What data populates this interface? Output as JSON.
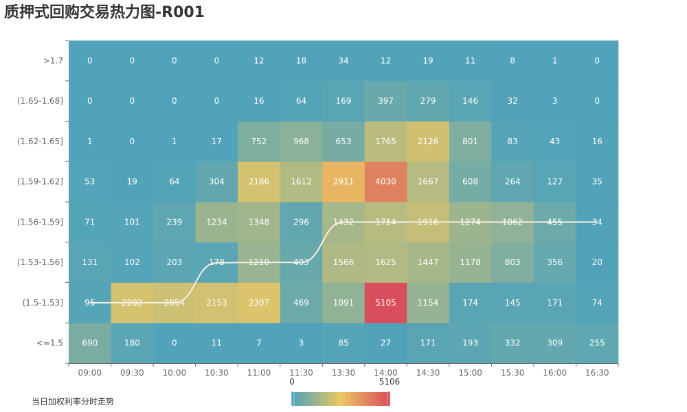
{
  "chart_data": {
    "type": "heatmap",
    "title": "质押式回购交易热力图-R001",
    "x": [
      "09:00",
      "09:30",
      "10:00",
      "10:30",
      "11:00",
      "11:30",
      "13:30",
      "14:00",
      "14:30",
      "15:00",
      "15:30",
      "16:00",
      "16:30"
    ],
    "y": [
      "<=1.5",
      "(1.5-1.53]",
      "(1.53-1.56]",
      "(1.56-1.59]",
      "(1.59-1.62]",
      "(1.62-1.65]",
      "(1.65-1.68]",
      ">1.7"
    ],
    "values": [
      [
        690,
        180,
        0,
        11,
        7,
        3,
        85,
        27,
        171,
        193,
        332,
        309,
        255
      ],
      [
        95,
        2202,
        2054,
        2153,
        2307,
        469,
        1091,
        5105,
        1154,
        174,
        145,
        171,
        74
      ],
      [
        131,
        102,
        203,
        178,
        1210,
        403,
        1566,
        1625,
        1447,
        1178,
        803,
        356,
        20
      ],
      [
        71,
        101,
        239,
        1234,
        1348,
        296,
        1432,
        1714,
        1916,
        1274,
        1062,
        455,
        34
      ],
      [
        53,
        19,
        64,
        304,
        2186,
        1612,
        2911,
        4030,
        1667,
        608,
        264,
        127,
        35
      ],
      [
        1,
        0,
        1,
        17,
        752,
        968,
        653,
        1765,
        2126,
        801,
        83,
        43,
        16
      ],
      [
        0,
        0,
        0,
        0,
        16,
        64,
        169,
        397,
        279,
        146,
        32,
        3,
        0
      ],
      [
        0,
        0,
        0,
        0,
        12,
        18,
        34,
        12,
        19,
        11,
        8,
        1,
        0
      ]
    ],
    "visual_map": {
      "min": 0,
      "max": 5106,
      "min_label": "0",
      "max_label": "5106",
      "colors": [
        "#50a3ba",
        "#eac763",
        "#d94e5d"
      ]
    },
    "line_series": {
      "name": "当日加权利率分时走势",
      "color": "#f5f0e1",
      "y_bucket_index": [
        1,
        1,
        1,
        1.99,
        2,
        2,
        3,
        3,
        3,
        3,
        3,
        3,
        3
      ]
    },
    "grid": false,
    "legend": "bottom-left"
  }
}
